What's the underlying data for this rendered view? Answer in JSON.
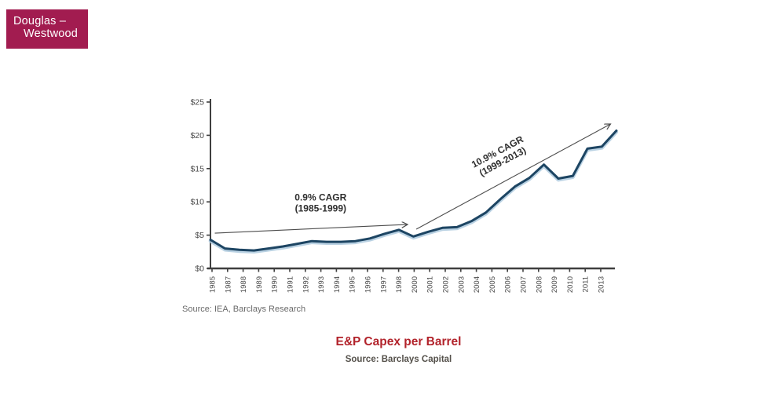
{
  "logo": {
    "line1": "Douglas –",
    "line2": "Westwood",
    "bg_color": "#A21C50",
    "text_color": "#FFFFFF"
  },
  "chart_data": {
    "type": "line",
    "series_name": "E&P Capex per Barrel (USD)",
    "x": [
      1985,
      1986,
      1987,
      1988,
      1989,
      1990,
      1991,
      1992,
      1993,
      1994,
      1995,
      1996,
      1997,
      1998,
      1999,
      2000,
      2001,
      2002,
      2003,
      2004,
      2005,
      2006,
      2007,
      2008,
      2009,
      2010,
      2011,
      2012,
      2013
    ],
    "values": [
      4.3,
      3.0,
      2.8,
      2.7,
      3.0,
      3.3,
      3.7,
      4.1,
      4.0,
      4.0,
      4.1,
      4.5,
      5.2,
      5.8,
      4.8,
      5.5,
      6.1,
      6.2,
      7.1,
      8.4,
      10.4,
      12.3,
      13.6,
      15.6,
      13.5,
      13.9,
      18.0,
      18.3,
      20.7
    ],
    "ylim": [
      0,
      25
    ],
    "y_ticks": [
      {
        "value": 0,
        "label": "$0"
      },
      {
        "value": 5,
        "label": "$5"
      },
      {
        "value": 10,
        "label": "$10"
      },
      {
        "value": 15,
        "label": "$15"
      },
      {
        "value": 20,
        "label": "$20"
      },
      {
        "value": 25,
        "label": "$25"
      }
    ],
    "x_tick_labels": [
      "1985",
      "1987",
      "1988",
      "1989",
      "1990",
      "1991",
      "1992",
      "1993",
      "1994",
      "1995",
      "1996",
      "1997",
      "1998",
      "2000",
      "2001",
      "2002",
      "2003",
      "2004",
      "2005",
      "2006",
      "2007",
      "2008",
      "2009",
      "2010",
      "2011",
      "2013"
    ],
    "grid": false,
    "legend": false,
    "line_color": "#1D4563",
    "annotations": [
      {
        "line1": "0.9% CAGR",
        "line2": "(1985-1999)",
        "label_year": 1992.6,
        "label_value": 10.2,
        "rotation": 0,
        "arrow": {
          "from_year": 1985.3,
          "from_value": 5.3,
          "to_year": 1998.6,
          "to_value": 6.6
        }
      },
      {
        "line1": "10.9% CAGR",
        "line2": "(1999-2013)",
        "label_year": 2004.9,
        "label_value": 17.1,
        "rotation": -28,
        "arrow": {
          "from_year": 1999.2,
          "from_value": 5.9,
          "to_year": 2012.6,
          "to_value": 21.7
        }
      }
    ]
  },
  "chart_source": "Source: IEA, Barclays Research",
  "footer": {
    "title": "E&P Capex per Barrel",
    "source": "Source: Barclays Capital",
    "title_color": "#B2232B"
  }
}
